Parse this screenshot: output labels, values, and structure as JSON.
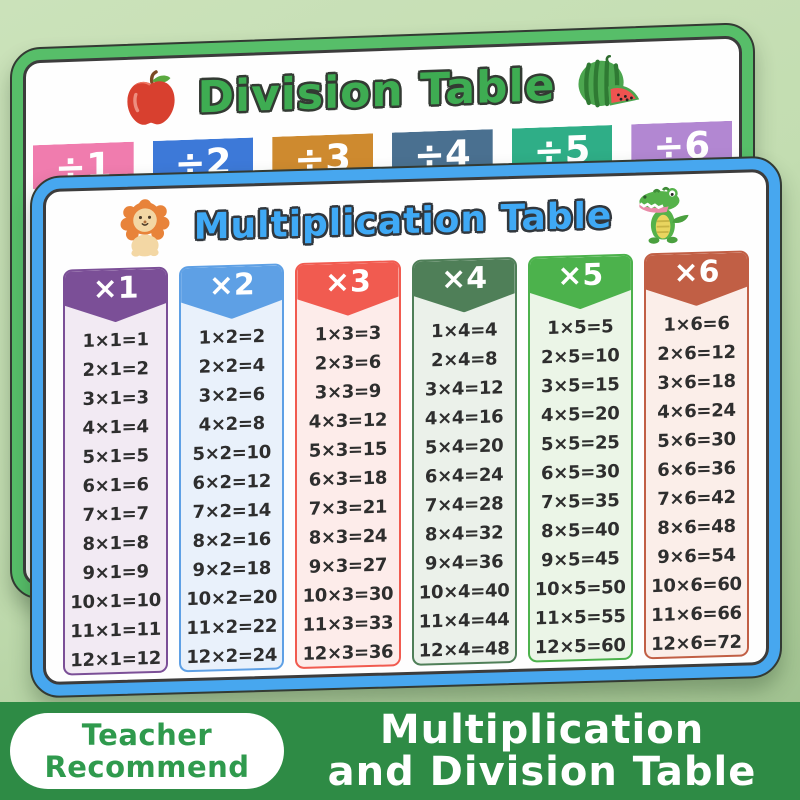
{
  "division_card": {
    "title": "Division Table",
    "title_color": "#3eac52",
    "border_color": "#57be69",
    "left_icon": "apple-icon",
    "right_icon": "watermelon-icon",
    "headers": [
      {
        "label": "÷1",
        "color": "#f07cae"
      },
      {
        "label": "÷2",
        "color": "#3d79d8"
      },
      {
        "label": "÷3",
        "color": "#ce8a2f"
      },
      {
        "label": "÷4",
        "color": "#4a7090"
      },
      {
        "label": "÷5",
        "color": "#2fae87"
      },
      {
        "label": "÷6",
        "color": "#b287d2"
      }
    ]
  },
  "multiplication_card": {
    "title": "Multiplication Table",
    "title_color": "#3fa9f5",
    "border_color": "#47a7ef",
    "left_icon": "lion-icon",
    "right_icon": "crocodile-icon",
    "columns": [
      {
        "header": "×1",
        "color": "#7b4f97",
        "tint": "#f2eaf3",
        "rows": [
          "1×1=1",
          "2×1=2",
          "3×1=3",
          "4×1=4",
          "5×1=5",
          "6×1=6",
          "7×1=7",
          "8×1=8",
          "9×1=9",
          "10×1=10",
          "11×1=11",
          "12×1=12"
        ]
      },
      {
        "header": "×2",
        "color": "#5ea0e5",
        "tint": "#e9f1fb",
        "rows": [
          "1×2=2",
          "2×2=4",
          "3×2=6",
          "4×2=8",
          "5×2=10",
          "6×2=12",
          "7×2=14",
          "8×2=16",
          "9×2=18",
          "10×2=20",
          "11×2=22",
          "12×2=24"
        ]
      },
      {
        "header": "×3",
        "color": "#f15b50",
        "tint": "#fdecea",
        "rows": [
          "1×3=3",
          "2×3=6",
          "3×3=9",
          "4×3=12",
          "5×3=15",
          "6×3=18",
          "7×3=21",
          "8×3=24",
          "9×3=27",
          "10×3=30",
          "11×3=33",
          "12×3=36"
        ]
      },
      {
        "header": "×4",
        "color": "#4f7f58",
        "tint": "#ebf1ea",
        "rows": [
          "1×4=4",
          "2×4=8",
          "3×4=12",
          "4×4=16",
          "5×4=20",
          "6×4=24",
          "7×4=28",
          "8×4=32",
          "9×4=36",
          "10×4=40",
          "11×4=44",
          "12×4=48"
        ]
      },
      {
        "header": "×5",
        "color": "#4cb24c",
        "tint": "#ebf5e7",
        "rows": [
          "1×5=5",
          "2×5=10",
          "3×5=15",
          "4×5=20",
          "5×5=25",
          "6×5=30",
          "7×5=35",
          "8×5=40",
          "9×5=45",
          "10×5=50",
          "11×5=55",
          "12×5=60"
        ]
      },
      {
        "header": "×6",
        "color": "#c15f45",
        "tint": "#fbeee9",
        "rows": [
          "1×6=6",
          "2×6=12",
          "3×6=18",
          "4×6=24",
          "5×6=30",
          "6×6=36",
          "7×6=42",
          "8×6=48",
          "9×6=54",
          "10×6=60",
          "11×6=66",
          "12×6=72"
        ]
      }
    ]
  },
  "footer": {
    "band_color": "#2e8b45",
    "badge_line1": "Teacher",
    "badge_line2": "Recommend",
    "badge_text_color": "#2f9a4d",
    "title_line1": "Multiplication",
    "title_line2": "and Division Table"
  }
}
